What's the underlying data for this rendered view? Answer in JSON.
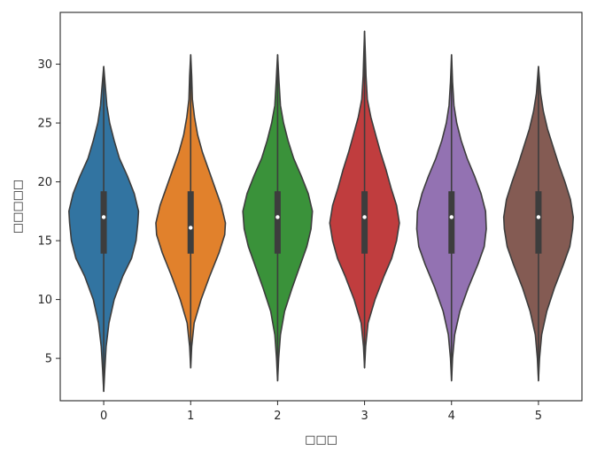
{
  "chart_data": {
    "type": "violin",
    "title": "",
    "xlabel": "□□□",
    "ylabel": "□□□□□",
    "categories": [
      "0",
      "1",
      "2",
      "3",
      "4",
      "5"
    ],
    "ylim": [
      1.4,
      34.4
    ],
    "y_ticks": [
      5,
      10,
      15,
      20,
      25,
      30
    ],
    "grid": false,
    "colors": [
      "#3274a1",
      "#e1812c",
      "#3a923a",
      "#c03d3e",
      "#9372b2",
      "#845b53"
    ],
    "series": [
      {
        "category": "0",
        "min": 2.2,
        "max": 29.8,
        "q1": 13.9,
        "median": 17.0,
        "q3": 19.2,
        "density": [
          [
            2.2,
            0.0
          ],
          [
            4,
            0.03
          ],
          [
            6,
            0.07
          ],
          [
            8,
            0.15
          ],
          [
            10,
            0.3
          ],
          [
            12,
            0.55
          ],
          [
            13.5,
            0.8
          ],
          [
            15,
            0.93
          ],
          [
            16.5,
            0.98
          ],
          [
            17.5,
            1.0
          ],
          [
            19,
            0.88
          ],
          [
            20.5,
            0.68
          ],
          [
            22,
            0.45
          ],
          [
            23.5,
            0.3
          ],
          [
            25,
            0.17
          ],
          [
            26.5,
            0.09
          ],
          [
            28,
            0.05
          ],
          [
            29.8,
            0.0
          ]
        ]
      },
      {
        "category": "1",
        "min": 4.2,
        "max": 30.8,
        "q1": 13.9,
        "median": 16.1,
        "q3": 19.2,
        "density": [
          [
            4.2,
            0.0
          ],
          [
            6,
            0.03
          ],
          [
            8,
            0.1
          ],
          [
            10,
            0.3
          ],
          [
            12,
            0.55
          ],
          [
            14,
            0.82
          ],
          [
            15.5,
            0.98
          ],
          [
            16.5,
            1.0
          ],
          [
            18,
            0.88
          ],
          [
            19.5,
            0.7
          ],
          [
            21,
            0.52
          ],
          [
            22.5,
            0.34
          ],
          [
            24,
            0.2
          ],
          [
            25.5,
            0.11
          ],
          [
            27,
            0.05
          ],
          [
            29,
            0.03
          ],
          [
            30.8,
            0.0
          ]
        ]
      },
      {
        "category": "2",
        "min": 3.1,
        "max": 30.8,
        "q1": 13.9,
        "median": 17.0,
        "q3": 19.2,
        "density": [
          [
            3.1,
            0.0
          ],
          [
            5,
            0.03
          ],
          [
            7,
            0.08
          ],
          [
            9,
            0.2
          ],
          [
            11,
            0.42
          ],
          [
            13,
            0.66
          ],
          [
            14.5,
            0.84
          ],
          [
            16,
            0.96
          ],
          [
            17.5,
            1.0
          ],
          [
            19,
            0.88
          ],
          [
            20.5,
            0.68
          ],
          [
            22,
            0.46
          ],
          [
            23.5,
            0.3
          ],
          [
            25,
            0.17
          ],
          [
            26.5,
            0.08
          ],
          [
            28.5,
            0.04
          ],
          [
            30.8,
            0.0
          ]
        ]
      },
      {
        "category": "3",
        "min": 4.2,
        "max": 32.8,
        "q1": 13.9,
        "median": 17.0,
        "q3": 19.2,
        "density": [
          [
            4.2,
            0.0
          ],
          [
            6,
            0.03
          ],
          [
            8,
            0.1
          ],
          [
            10,
            0.3
          ],
          [
            12,
            0.56
          ],
          [
            13.5,
            0.78
          ],
          [
            15,
            0.92
          ],
          [
            16.5,
            1.0
          ],
          [
            18,
            0.92
          ],
          [
            19.5,
            0.76
          ],
          [
            21,
            0.62
          ],
          [
            22.5,
            0.46
          ],
          [
            24,
            0.32
          ],
          [
            25.5,
            0.18
          ],
          [
            27,
            0.08
          ],
          [
            29,
            0.04
          ],
          [
            31,
            0.02
          ],
          [
            32.8,
            0.0
          ]
        ]
      },
      {
        "category": "4",
        "min": 3.1,
        "max": 30.8,
        "q1": 13.9,
        "median": 17.0,
        "q3": 19.2,
        "density": [
          [
            3.1,
            0.0
          ],
          [
            5,
            0.03
          ],
          [
            7,
            0.09
          ],
          [
            9,
            0.24
          ],
          [
            11,
            0.48
          ],
          [
            13,
            0.76
          ],
          [
            14.5,
            0.94
          ],
          [
            16,
            1.0
          ],
          [
            17.5,
            0.98
          ],
          [
            19,
            0.85
          ],
          [
            20.5,
            0.66
          ],
          [
            22,
            0.45
          ],
          [
            23.5,
            0.28
          ],
          [
            25,
            0.15
          ],
          [
            26.5,
            0.07
          ],
          [
            28.5,
            0.03
          ],
          [
            30.8,
            0.0
          ]
        ]
      },
      {
        "category": "5",
        "min": 3.1,
        "max": 29.8,
        "q1": 13.9,
        "median": 17.0,
        "q3": 19.2,
        "density": [
          [
            3.1,
            0.0
          ],
          [
            5,
            0.03
          ],
          [
            7,
            0.09
          ],
          [
            9,
            0.24
          ],
          [
            11,
            0.46
          ],
          [
            13,
            0.72
          ],
          [
            14.5,
            0.9
          ],
          [
            16,
            0.98
          ],
          [
            17,
            1.0
          ],
          [
            18.5,
            0.92
          ],
          [
            20,
            0.76
          ],
          [
            21.5,
            0.58
          ],
          [
            23,
            0.42
          ],
          [
            24.5,
            0.26
          ],
          [
            26,
            0.14
          ],
          [
            27.5,
            0.06
          ],
          [
            29.8,
            0.0
          ]
        ]
      }
    ]
  }
}
